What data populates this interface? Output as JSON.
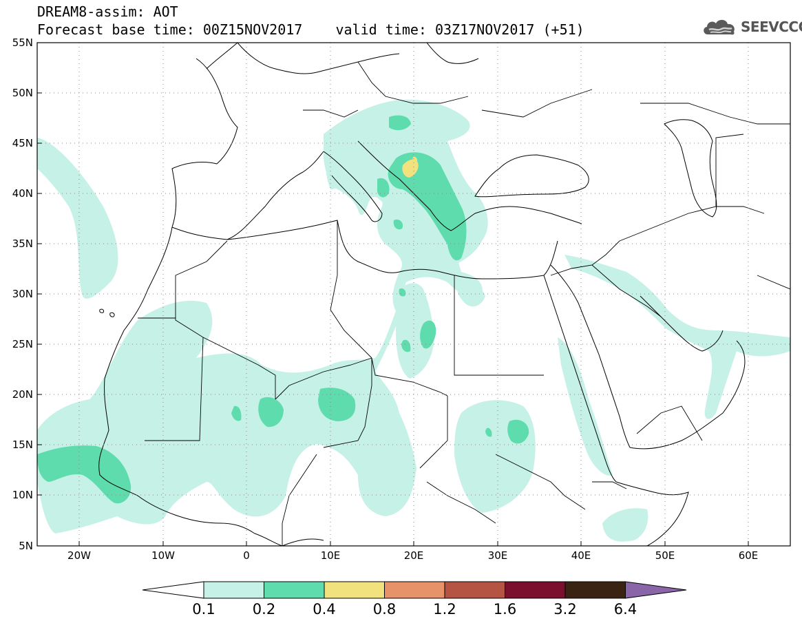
{
  "header": {
    "model_title": "DREAM8-assim: AOT",
    "base_time_label": "Forecast base time: 00Z15NOV2017",
    "valid_time_label": "valid time: 03Z17NOV2017 (+51)"
  },
  "logo": {
    "text": "SEEVCCC",
    "icon": "cloud-icon"
  },
  "map": {
    "lon_labels": [
      "20W",
      "10W",
      "0",
      "10E",
      "20E",
      "30E",
      "40E",
      "50E",
      "60E"
    ],
    "lat_labels": [
      "55N",
      "50N",
      "45N",
      "40N",
      "35N",
      "30N",
      "25N",
      "20N",
      "15N",
      "10N",
      "5N"
    ],
    "lon_range": [
      -25,
      65
    ],
    "lat_range": [
      5,
      55
    ],
    "grid": "dotted"
  },
  "colorbar": {
    "labels": [
      "0.1",
      "0.2",
      "0.4",
      "0.8",
      "1.2",
      "1.6",
      "3.2",
      "6.4"
    ],
    "colors": [
      "#ffffff",
      "#c6f1e7",
      "#5fdcae",
      "#f2e27d",
      "#e8926a",
      "#b65443",
      "#7a0f2e",
      "#3b2314",
      "#8a66a8"
    ]
  },
  "fields": {
    "level_0_1": "#c6f1e7",
    "level_0_2": "#5fdcae",
    "level_0_4": "#f2e27d"
  }
}
